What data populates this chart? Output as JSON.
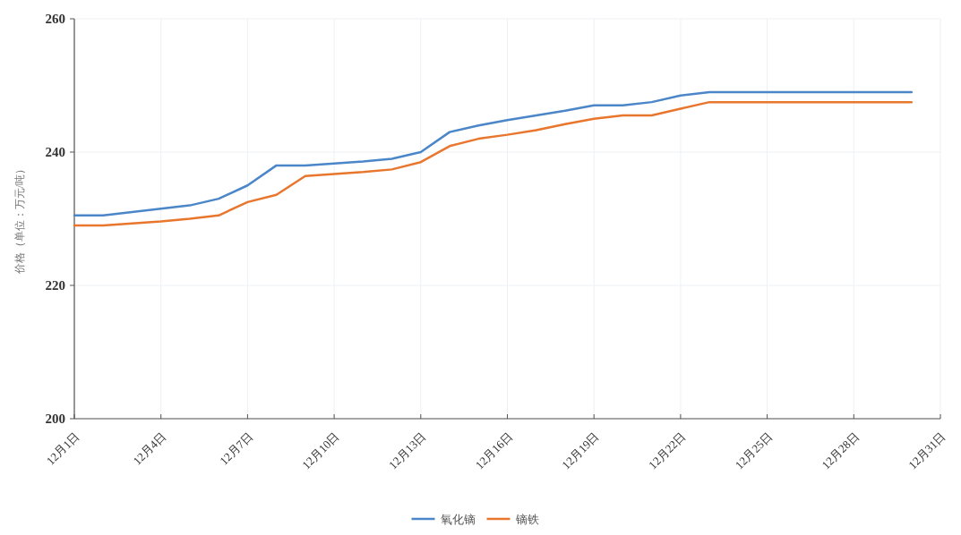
{
  "chart_data": {
    "type": "line",
    "ylabel": "价格（单位：万元/吨）",
    "x": [
      "--12-01",
      "--12-02",
      "--12-03",
      "--12-04",
      "--12-05",
      "--12-06",
      "--12-07",
      "--12-08",
      "--12-09",
      "--12-10",
      "--12-11",
      "--12-12",
      "--12-13",
      "--12-14",
      "--12-15",
      "--12-16",
      "--12-17",
      "--12-18",
      "--12-19",
      "--12-20",
      "--12-21",
      "--12-22",
      "--12-23",
      "--12-24",
      "--12-25",
      "--12-26",
      "--12-27",
      "--12-28",
      "--12-29",
      "--12-30"
    ],
    "series": [
      {
        "name": "氧化镝",
        "color": "#4a86c8",
        "values": [
          230.5,
          230.5,
          231.0,
          231.5,
          232.0,
          233.0,
          235.0,
          238.0,
          238.0,
          238.3,
          238.6,
          239.0,
          240.0,
          243.0,
          244.0,
          244.8,
          245.5,
          246.2,
          247.0,
          247.0,
          247.5,
          248.5,
          249.0,
          249.0,
          249.0,
          249.0,
          249.0,
          249.0,
          249.0,
          249.0
        ]
      },
      {
        "name": "镝铁",
        "color": "#e8762d",
        "values": [
          229.0,
          229.0,
          229.3,
          229.6,
          230.0,
          230.5,
          232.5,
          233.6,
          236.4,
          236.7,
          237.0,
          237.4,
          238.5,
          240.9,
          242.0,
          242.6,
          243.3,
          244.2,
          245.0,
          245.5,
          245.5,
          246.5,
          247.5,
          247.5,
          247.5,
          247.5,
          247.5,
          247.5,
          247.5,
          247.5
        ]
      }
    ],
    "xlim": [
      "--12-01",
      "--12-31"
    ],
    "xticks": [
      {
        "value": "--12-01",
        "label": "12月1日"
      },
      {
        "value": "--12-04",
        "label": "12月4日"
      },
      {
        "value": "--12-07",
        "label": "12月7日"
      },
      {
        "value": "--12-10",
        "label": "12月10日"
      },
      {
        "value": "--12-13",
        "label": "12月13日"
      },
      {
        "value": "--12-16",
        "label": "12月16日"
      },
      {
        "value": "--12-19",
        "label": "12月19日"
      },
      {
        "value": "--12-22",
        "label": "12月22日"
      },
      {
        "value": "--12-25",
        "label": "12月25日"
      },
      {
        "value": "--12-28",
        "label": "12月28日"
      },
      {
        "value": "--12-31",
        "label": "12月31日"
      }
    ],
    "ylim": [
      200,
      260
    ],
    "yticks": [
      200,
      220,
      240,
      260
    ],
    "grid": true,
    "legend": "bottom",
    "marker": "none",
    "line_style": "solid"
  }
}
